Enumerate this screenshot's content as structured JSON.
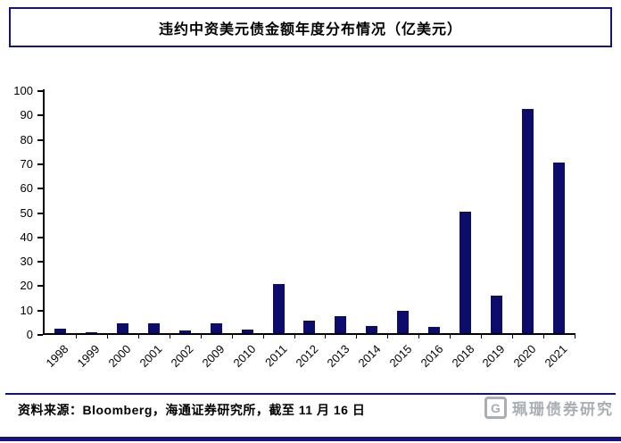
{
  "header": {
    "title": "违约中资美元债金额年度分布情况（亿美元）"
  },
  "chart_data": {
    "type": "bar",
    "title": "违约中资美元债金额年度分布情况（亿美元）",
    "categories": [
      "1998",
      "1999",
      "2000",
      "2001",
      "2002",
      "2009",
      "2010",
      "2011",
      "2012",
      "2013",
      "2014",
      "2015",
      "2016",
      "2018",
      "2019",
      "2020",
      "2021"
    ],
    "values": [
      2,
      0.5,
      4,
      4,
      1,
      4,
      1.5,
      20,
      5,
      7,
      3,
      9,
      2.5,
      50,
      15.5,
      92,
      70
    ],
    "xlabel": "",
    "ylabel": "",
    "ylim": [
      0,
      100
    ],
    "ytick_step": 10,
    "grid": false,
    "legend": false,
    "bar_color": "#0c0c6a",
    "axis_color": "#000000"
  },
  "footer": {
    "source_text": "资料来源：Bloomberg，海通证券研究所，截至 11 月 16 日"
  },
  "watermark": {
    "logo_text": "G",
    "text": "珮珊债券研究"
  },
  "colors": {
    "accent_navy": "#14147a",
    "bar": "#0c0c6a",
    "watermark_gray": "#9aa0a8"
  }
}
